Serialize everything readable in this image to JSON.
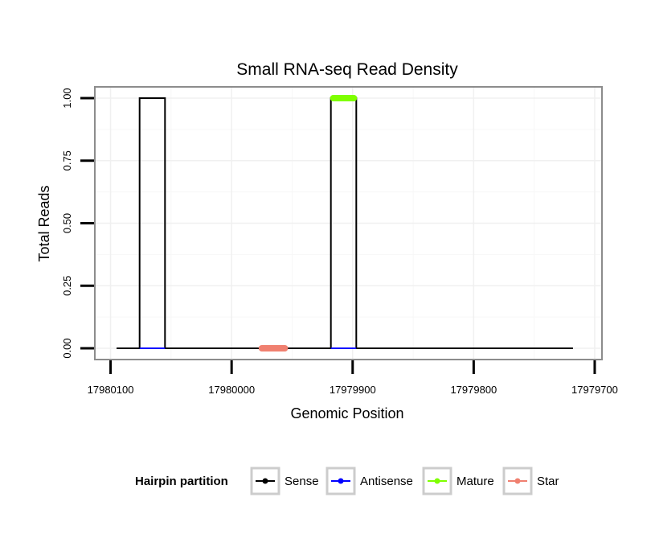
{
  "chart_data": {
    "type": "line",
    "title": "Small RNA-seq Read Density",
    "xlabel": "Genomic Position",
    "ylabel": "Total Reads",
    "xlim": [
      17980113,
      17979694
    ],
    "x_reversed": true,
    "ylim": [
      -0.045,
      1.045
    ],
    "grid": true,
    "x_ticks": [
      17980100,
      17980000,
      17979900,
      17979800,
      17979700
    ],
    "x_tick_labels": [
      "17980100",
      "17980000",
      "17979900",
      "17979800",
      "17979700"
    ],
    "y_ticks": [
      0,
      0.25,
      0.5,
      0.75,
      1
    ],
    "y_tick_labels": [
      "0.00",
      "0.25",
      "0.50",
      "0.75",
      "1.00"
    ],
    "colors": {
      "Sense": "#000000",
      "Antisense": "#0000ff",
      "Mature": "#7fff00",
      "Star": "#f08070"
    },
    "series": [
      {
        "name": "Sense",
        "points": [
          [
            17980095,
            0
          ],
          [
            17980076,
            0
          ],
          [
            17980076,
            1
          ],
          [
            17980055,
            1
          ],
          [
            17980055,
            0
          ],
          [
            17979918,
            0
          ],
          [
            17979918,
            1
          ],
          [
            17979897,
            1
          ],
          [
            17979897,
            0
          ],
          [
            17979718,
            0
          ]
        ]
      },
      {
        "name": "Antisense",
        "points": [
          [
            17980076,
            0
          ],
          [
            17980055,
            0
          ],
          [
            17979918,
            0
          ],
          [
            17979897,
            0
          ]
        ]
      },
      {
        "name": "Mature",
        "points": [
          [
            17979916,
            1
          ],
          [
            17979899,
            1
          ]
        ]
      },
      {
        "name": "Star",
        "points": [
          [
            17979975,
            0
          ],
          [
            17979956,
            0
          ]
        ]
      }
    ],
    "legend": {
      "title": "Hairpin partition",
      "position": "bottom",
      "entries": [
        "Sense",
        "Antisense",
        "Mature",
        "Star"
      ]
    }
  }
}
